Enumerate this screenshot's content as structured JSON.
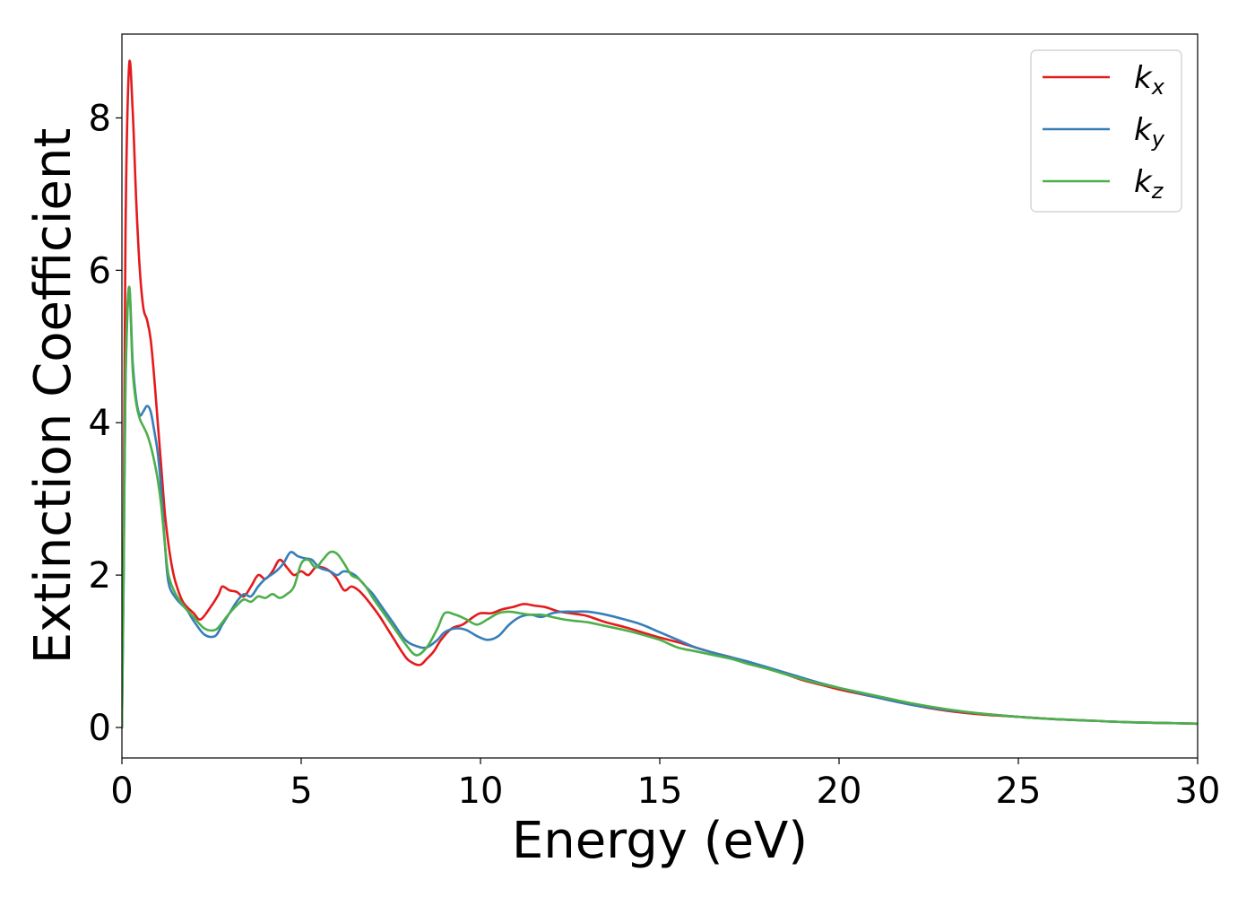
{
  "chart_data": {
    "type": "line",
    "xlabel": "Energy (eV)",
    "ylabel": "Extinction Coefficient",
    "xlim": [
      0,
      30
    ],
    "ylim": [
      -0.4,
      9.1
    ],
    "xticks": [
      0,
      5,
      10,
      15,
      20,
      25,
      30
    ],
    "yticks": [
      0,
      2,
      4,
      6,
      8
    ],
    "grid": false,
    "legend_position": "top-right",
    "series": [
      {
        "name": "k_x",
        "label_base": "k",
        "label_sub": "x",
        "color": "#e41a1c",
        "x": [
          0,
          0.05,
          0.1,
          0.2,
          0.3,
          0.4,
          0.5,
          0.6,
          0.7,
          0.8,
          0.9,
          1.0,
          1.1,
          1.2,
          1.3,
          1.4,
          1.5,
          1.7,
          2.0,
          2.2,
          2.5,
          2.7,
          2.8,
          3.0,
          3.2,
          3.4,
          3.6,
          3.8,
          4.0,
          4.2,
          4.4,
          4.6,
          4.8,
          5.0,
          5.2,
          5.4,
          5.6,
          5.8,
          6.0,
          6.2,
          6.4,
          6.6,
          6.8,
          7.0,
          7.2,
          7.4,
          7.6,
          7.8,
          8.0,
          8.3,
          8.5,
          8.7,
          8.9,
          9.2,
          9.5,
          9.8,
          10.0,
          10.3,
          10.6,
          10.9,
          11.2,
          11.5,
          11.8,
          12.0,
          12.2,
          12.5,
          12.8,
          13.0,
          13.5,
          14.0,
          14.5,
          15.0,
          15.5,
          16.0,
          16.5,
          17.0,
          17.5,
          18.0,
          18.5,
          19.0,
          19.5,
          20.0,
          21.0,
          22.0,
          23.0,
          24.0,
          25.0,
          26.0,
          27.0,
          28.0,
          29.0,
          30.0
        ],
        "y": [
          0.0,
          2.5,
          6.5,
          8.68,
          8.1,
          6.9,
          6.0,
          5.5,
          5.35,
          5.1,
          4.6,
          4.0,
          3.4,
          2.8,
          2.4,
          2.1,
          1.9,
          1.65,
          1.5,
          1.42,
          1.6,
          1.75,
          1.85,
          1.8,
          1.78,
          1.72,
          1.85,
          2.0,
          1.95,
          2.05,
          2.2,
          2.1,
          2.0,
          2.05,
          2.0,
          2.1,
          2.1,
          2.05,
          1.95,
          1.8,
          1.85,
          1.8,
          1.7,
          1.58,
          1.45,
          1.3,
          1.15,
          1.0,
          0.88,
          0.82,
          0.9,
          1.0,
          1.15,
          1.3,
          1.35,
          1.45,
          1.5,
          1.5,
          1.55,
          1.58,
          1.62,
          1.6,
          1.58,
          1.55,
          1.52,
          1.5,
          1.48,
          1.46,
          1.38,
          1.32,
          1.25,
          1.18,
          1.12,
          1.05,
          0.98,
          0.92,
          0.85,
          0.78,
          0.7,
          0.62,
          0.56,
          0.5,
          0.4,
          0.3,
          0.22,
          0.17,
          0.14,
          0.11,
          0.09,
          0.07,
          0.06,
          0.05
        ]
      },
      {
        "name": "k_y",
        "label_base": "k",
        "label_sub": "y",
        "color": "#377eb8",
        "x": [
          0,
          0.05,
          0.1,
          0.2,
          0.3,
          0.4,
          0.5,
          0.6,
          0.7,
          0.8,
          0.9,
          1.0,
          1.1,
          1.2,
          1.3,
          1.5,
          1.8,
          2.0,
          2.3,
          2.6,
          2.8,
          3.0,
          3.2,
          3.4,
          3.6,
          3.8,
          4.0,
          4.3,
          4.5,
          4.7,
          4.9,
          5.1,
          5.3,
          5.5,
          5.8,
          6.0,
          6.2,
          6.5,
          6.8,
          7.0,
          7.3,
          7.6,
          7.9,
          8.2,
          8.5,
          8.8,
          9.0,
          9.3,
          9.6,
          9.9,
          10.2,
          10.5,
          10.8,
          11.1,
          11.4,
          11.7,
          12.0,
          12.3,
          12.6,
          13.0,
          13.5,
          14.0,
          14.5,
          15.0,
          15.5,
          16.0,
          16.5,
          17.0,
          17.5,
          18.0,
          18.5,
          19.0,
          19.5,
          20.0,
          21.0,
          22.0,
          23.0,
          24.0,
          25.0,
          26.0,
          27.0,
          28.0,
          29.0,
          30.0
        ],
        "y": [
          0.0,
          2.0,
          4.5,
          5.78,
          4.8,
          4.3,
          4.1,
          4.15,
          4.22,
          4.15,
          3.9,
          3.6,
          3.1,
          2.4,
          1.9,
          1.7,
          1.55,
          1.4,
          1.22,
          1.2,
          1.35,
          1.5,
          1.65,
          1.75,
          1.72,
          1.85,
          1.95,
          2.05,
          2.15,
          2.3,
          2.25,
          2.22,
          2.2,
          2.1,
          2.05,
          2.0,
          2.05,
          2.0,
          1.85,
          1.75,
          1.55,
          1.35,
          1.15,
          1.07,
          1.05,
          1.15,
          1.25,
          1.3,
          1.28,
          1.2,
          1.15,
          1.2,
          1.35,
          1.45,
          1.48,
          1.45,
          1.5,
          1.52,
          1.52,
          1.52,
          1.48,
          1.42,
          1.35,
          1.25,
          1.15,
          1.05,
          0.98,
          0.92,
          0.86,
          0.79,
          0.72,
          0.65,
          0.58,
          0.52,
          0.4,
          0.3,
          0.23,
          0.18,
          0.14,
          0.11,
          0.09,
          0.07,
          0.06,
          0.05
        ]
      },
      {
        "name": "k_z",
        "label_base": "k",
        "label_sub": "z",
        "color": "#4daf4a",
        "x": [
          0,
          0.05,
          0.1,
          0.2,
          0.3,
          0.4,
          0.5,
          0.6,
          0.7,
          0.8,
          0.9,
          1.0,
          1.1,
          1.2,
          1.3,
          1.5,
          1.8,
          2.0,
          2.3,
          2.6,
          2.8,
          3.0,
          3.2,
          3.4,
          3.6,
          3.8,
          4.0,
          4.2,
          4.4,
          4.6,
          4.8,
          5.0,
          5.2,
          5.4,
          5.6,
          5.8,
          6.0,
          6.2,
          6.4,
          6.6,
          6.8,
          7.0,
          7.3,
          7.6,
          7.9,
          8.2,
          8.5,
          8.8,
          9.0,
          9.3,
          9.6,
          9.9,
          10.2,
          10.5,
          10.8,
          11.1,
          11.4,
          11.7,
          12.0,
          12.3,
          12.6,
          13.0,
          13.5,
          14.0,
          14.5,
          15.0,
          15.5,
          16.0,
          16.5,
          17.0,
          17.5,
          18.0,
          18.5,
          19.0,
          19.5,
          20.0,
          21.0,
          22.0,
          23.0,
          24.0,
          25.0,
          26.0,
          27.0,
          28.0,
          29.0,
          30.0
        ],
        "y": [
          0.0,
          2.2,
          4.6,
          5.78,
          4.7,
          4.25,
          4.05,
          3.95,
          3.85,
          3.7,
          3.5,
          3.25,
          2.9,
          2.4,
          2.0,
          1.75,
          1.55,
          1.45,
          1.3,
          1.28,
          1.38,
          1.5,
          1.6,
          1.68,
          1.65,
          1.72,
          1.7,
          1.75,
          1.7,
          1.75,
          1.85,
          2.15,
          2.2,
          2.1,
          2.2,
          2.3,
          2.28,
          2.15,
          2.0,
          1.95,
          1.85,
          1.7,
          1.5,
          1.3,
          1.1,
          0.95,
          1.05,
          1.3,
          1.5,
          1.48,
          1.42,
          1.35,
          1.42,
          1.5,
          1.52,
          1.5,
          1.48,
          1.48,
          1.45,
          1.42,
          1.4,
          1.38,
          1.33,
          1.28,
          1.22,
          1.15,
          1.05,
          1.0,
          0.95,
          0.9,
          0.83,
          0.77,
          0.7,
          0.63,
          0.57,
          0.52,
          0.42,
          0.32,
          0.24,
          0.18,
          0.14,
          0.11,
          0.09,
          0.07,
          0.06,
          0.05
        ]
      }
    ]
  }
}
